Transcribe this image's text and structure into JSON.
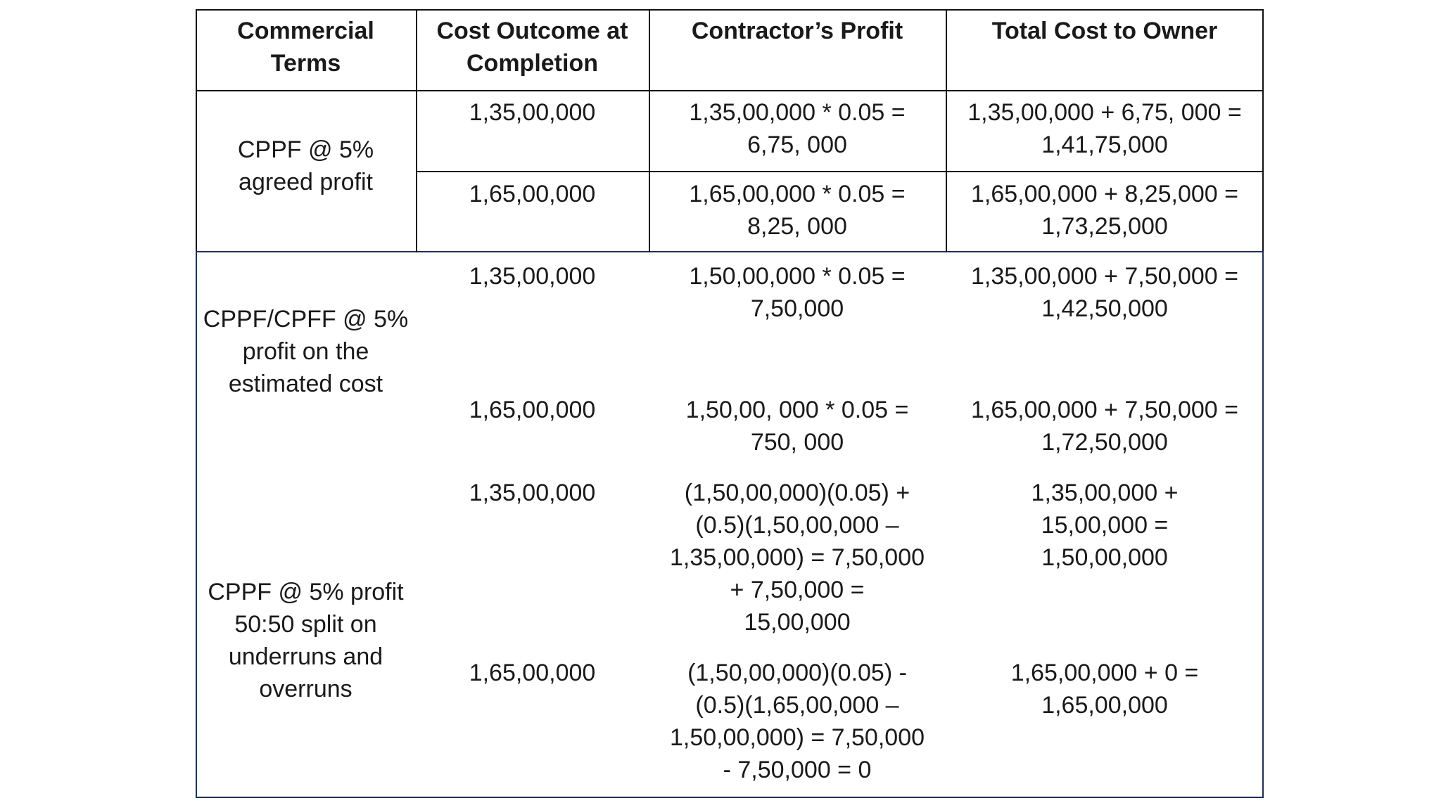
{
  "headers": {
    "terms": [
      "Commercial",
      "Terms"
    ],
    "outcome": [
      "Cost Outcome at",
      "Completion"
    ],
    "profit": [
      "Contractor’s Profit"
    ],
    "total": [
      "Total Cost to Owner"
    ]
  },
  "groups": [
    {
      "terms": [
        "CPPF @ 5%",
        "agreed profit"
      ],
      "rows": [
        {
          "outcome": "1,35,00,000",
          "profit": [
            "1,35,00,000 * 0.05 =",
            "6,75, 000"
          ],
          "total": [
            "1,35,00,000 + 6,75, 000 =",
            "1,41,75,000"
          ]
        },
        {
          "outcome": "1,65,00,000",
          "profit": [
            "1,65,00,000 * 0.05 =",
            "8,25, 000"
          ],
          "total": [
            "1,65,00,000 + 8,25,000 =",
            "1,73,25,000"
          ]
        }
      ]
    },
    {
      "terms": [
        "CPPF/CPFF @ 5%",
        "profit on the",
        "estimated cost"
      ],
      "rows": [
        {
          "outcome": "1,35,00,000",
          "profit": [
            "1,50,00,000 * 0.05 =",
            "7,50,000"
          ],
          "total": [
            "1,35,00,000 + 7,50,000 =",
            "1,42,50,000"
          ]
        },
        {
          "outcome": "1,65,00,000",
          "profit": [
            "1,50,00, 000 * 0.05 =",
            "750, 000"
          ],
          "total": [
            "1,65,00,000 + 7,50,000 =",
            "1,72,50,000"
          ]
        }
      ]
    },
    {
      "terms": [
        "CPPF @ 5% profit",
        "50:50 split on",
        "underruns and",
        "overruns"
      ],
      "rows": [
        {
          "outcome": "1,35,00,000",
          "profit": [
            "(1,50,00,000)(0.05) +",
            "(0.5)(1,50,00,000 –",
            "1,35,00,000) = 7,50,000",
            "+ 7,50,000 =",
            "15,00,000"
          ],
          "total": [
            "1,35,00,000 +",
            "15,00,000 =",
            "1,50,00,000"
          ]
        },
        {
          "outcome": "1,65,00,000",
          "profit": [
            "(1,50,00,000)(0.05) -",
            "(0.5)(1,65,00,000 –",
            "1,50,00,000) = 7,50,000",
            "- 7,50,000 = 0"
          ],
          "total": [
            "1,65,00,000 + 0 =",
            "1,65,00,000"
          ]
        }
      ]
    }
  ]
}
